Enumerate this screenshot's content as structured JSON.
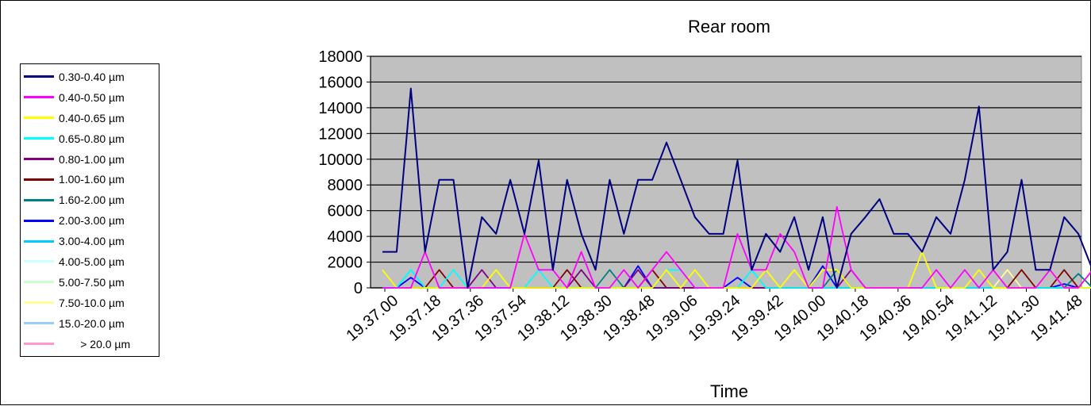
{
  "chart_data": {
    "type": "line",
    "title": "Rear room",
    "xlabel": "Time",
    "ylabel": "",
    "ylim": [
      0,
      18000
    ],
    "yticks": [
      0,
      2000,
      4000,
      6000,
      8000,
      10000,
      12000,
      14000,
      16000,
      18000
    ],
    "xtick_labels": [
      "19.37.00",
      "19.37.18",
      "19.37.36",
      "19.37.54",
      "19.38.12",
      "19.38.30",
      "19.38.48",
      "19.39.06",
      "19.39.24",
      "19.39.42",
      "19.40.00",
      "19.40.18",
      "19.40.36",
      "19.40.54",
      "19.41.12",
      "19.41.30",
      "19.41.48"
    ],
    "plot_background": "#c0c0c0",
    "grid": true,
    "legend_position": "left",
    "series": [
      {
        "name": "0.30-0.40 µm",
        "color": "#000080",
        "values": [
          2800,
          2800,
          15500,
          2800,
          8400,
          8400,
          0,
          5500,
          4200,
          8400,
          4200,
          9900,
          1400,
          8400,
          4200,
          1400,
          8400,
          4200,
          8400,
          8400,
          11300,
          8400,
          5500,
          4200,
          4200,
          9900,
          1400,
          4200,
          2800,
          5500,
          1400,
          5500,
          0,
          4200,
          5500,
          6900,
          4200,
          4200,
          2800,
          5500,
          4200,
          8400,
          14100,
          1400,
          2800,
          8400,
          1400,
          1400,
          5500,
          4200,
          1400
        ]
      },
      {
        "name": "0.40-0.50 µm",
        "color": "#ff00ff",
        "values": [
          0,
          0,
          0,
          2800,
          0,
          0,
          0,
          0,
          0,
          0,
          4200,
          1400,
          1400,
          0,
          2800,
          0,
          0,
          1400,
          0,
          1400,
          2800,
          1400,
          0,
          0,
          0,
          4200,
          1400,
          1400,
          4200,
          2800,
          0,
          0,
          6300,
          1400,
          0,
          0,
          0,
          0,
          0,
          1400,
          0,
          1400,
          0,
          1400,
          0,
          0,
          0,
          1400,
          0,
          0,
          1400
        ]
      },
      {
        "name": "0.40-0.65 µm",
        "color": "#ffff00",
        "values": [
          1400,
          0,
          0,
          0,
          0,
          0,
          0,
          0,
          1400,
          0,
          0,
          0,
          0,
          0,
          0,
          0,
          0,
          0,
          0,
          0,
          1400,
          0,
          1400,
          0,
          0,
          0,
          0,
          1400,
          0,
          1400,
          0,
          1400,
          1400,
          0,
          0,
          0,
          0,
          0,
          2800,
          0,
          0,
          0,
          1400,
          0,
          0,
          0,
          0,
          1400,
          0,
          0,
          0
        ]
      },
      {
        "name": "0.65-0.80 µm",
        "color": "#00ffff",
        "values": [
          0,
          0,
          1400,
          0,
          0,
          1400,
          0,
          0,
          0,
          0,
          0,
          1400,
          0,
          0,
          0,
          0,
          0,
          0,
          0,
          0,
          1400,
          1400,
          0,
          0,
          0,
          0,
          1400,
          0,
          0,
          0,
          0,
          0,
          0,
          0,
          0,
          0,
          0,
          0,
          0,
          0,
          0,
          0,
          0,
          0,
          0,
          0,
          0,
          0,
          0,
          0,
          0
        ]
      },
      {
        "name": "0.80-1.00 µm",
        "color": "#800080",
        "values": [
          0,
          0,
          0,
          0,
          0,
          0,
          0,
          1400,
          0,
          0,
          0,
          0,
          0,
          0,
          1400,
          0,
          0,
          0,
          1400,
          0,
          0,
          0,
          0,
          0,
          0,
          0,
          0,
          0,
          0,
          0,
          0,
          0,
          0,
          1400,
          0,
          0,
          0,
          0,
          0,
          0,
          0,
          0,
          0,
          0,
          0,
          0,
          0,
          0,
          0,
          0,
          0
        ]
      },
      {
        "name": "1.00-1.60 µm",
        "color": "#800000",
        "values": [
          0,
          0,
          0,
          0,
          1400,
          0,
          0,
          0,
          0,
          0,
          0,
          0,
          0,
          1400,
          0,
          0,
          0,
          0,
          0,
          1400,
          0,
          0,
          0,
          0,
          0,
          0,
          0,
          0,
          0,
          0,
          0,
          0,
          0,
          0,
          0,
          0,
          0,
          0,
          0,
          0,
          0,
          0,
          0,
          0,
          0,
          1400,
          0,
          0,
          1400,
          0,
          0
        ]
      },
      {
        "name": "1.60-2.00 µm",
        "color": "#008080",
        "values": [
          0,
          0,
          0,
          0,
          0,
          0,
          0,
          0,
          0,
          0,
          0,
          0,
          0,
          0,
          0,
          0,
          1400,
          0,
          0,
          0,
          0,
          0,
          0,
          0,
          0,
          0,
          0,
          0,
          0,
          0,
          0,
          0,
          1400,
          0,
          0,
          0,
          0,
          0,
          0,
          0,
          0,
          0,
          0,
          0,
          0,
          0,
          0,
          0,
          0,
          1100,
          0
        ]
      },
      {
        "name": "2.00-3.00 µm",
        "color": "#0000ff",
        "values": [
          0,
          0,
          800,
          0,
          0,
          0,
          0,
          0,
          0,
          0,
          0,
          0,
          0,
          0,
          0,
          0,
          0,
          0,
          1700,
          0,
          0,
          0,
          0,
          0,
          0,
          800,
          0,
          0,
          0,
          0,
          0,
          1700,
          0,
          0,
          0,
          0,
          0,
          0,
          0,
          0,
          0,
          0,
          0,
          0,
          0,
          0,
          0,
          0,
          300,
          0,
          0
        ]
      },
      {
        "name": "3.00-4.00 µm",
        "color": "#00ccff",
        "values": [
          0,
          0,
          1400,
          0,
          0,
          0,
          0,
          0,
          0,
          0,
          0,
          0,
          0,
          0,
          0,
          0,
          0,
          0,
          0,
          0,
          0,
          0,
          0,
          0,
          0,
          0,
          1400,
          0,
          0,
          0,
          0,
          0,
          0,
          0,
          0,
          0,
          0,
          0,
          0,
          0,
          0,
          0,
          0,
          0,
          0,
          0,
          0,
          0,
          0,
          0,
          0
        ]
      },
      {
        "name": "4.00-5.00 µm",
        "color": "#ccffff",
        "values": [
          0,
          0,
          0,
          0,
          0,
          0,
          0,
          0,
          0,
          0,
          0,
          0,
          0,
          0,
          0,
          0,
          0,
          0,
          0,
          0,
          0,
          0,
          0,
          0,
          0,
          0,
          0,
          0,
          0,
          0,
          0,
          0,
          0,
          0,
          0,
          0,
          0,
          0,
          0,
          0,
          0,
          0,
          0,
          0,
          0,
          0,
          0,
          0,
          0,
          0,
          0
        ]
      },
      {
        "name": "5.00-7.50 µm",
        "color": "#ccffcc",
        "values": [
          0,
          0,
          0,
          0,
          0,
          0,
          0,
          0,
          0,
          0,
          0,
          0,
          0,
          0,
          0,
          0,
          0,
          0,
          0,
          0,
          0,
          0,
          0,
          0,
          0,
          0,
          0,
          0,
          0,
          0,
          0,
          0,
          0,
          0,
          0,
          0,
          0,
          0,
          0,
          0,
          0,
          0,
          0,
          0,
          0,
          0,
          0,
          0,
          0,
          0,
          0
        ]
      },
      {
        "name": "7.50-10.0 µm",
        "color": "#ffff99",
        "values": [
          0,
          0,
          0,
          0,
          0,
          0,
          0,
          0,
          0,
          0,
          0,
          0,
          0,
          0,
          0,
          0,
          0,
          0,
          0,
          0,
          0,
          0,
          0,
          0,
          0,
          0,
          0,
          0,
          0,
          0,
          0,
          0,
          0,
          0,
          0,
          0,
          0,
          0,
          0,
          0,
          0,
          0,
          0,
          0,
          1400,
          0,
          0,
          0,
          0,
          0,
          0
        ]
      },
      {
        "name": "15.0-20.0 µm",
        "color": "#99ccff",
        "values": [
          0,
          0,
          0,
          0,
          0,
          0,
          0,
          0,
          0,
          0,
          0,
          0,
          0,
          0,
          0,
          0,
          0,
          0,
          0,
          0,
          0,
          0,
          0,
          0,
          0,
          0,
          0,
          0,
          0,
          0,
          0,
          0,
          0,
          0,
          0,
          0,
          0,
          0,
          0,
          0,
          0,
          0,
          0,
          0,
          0,
          0,
          0,
          0,
          0,
          0,
          0
        ]
      },
      {
        "name": "> 20.0 µm",
        "color": "#ff99cc",
        "values": [
          0,
          0,
          0,
          0,
          0,
          0,
          0,
          0,
          0,
          0,
          0,
          0,
          0,
          0,
          0,
          0,
          0,
          0,
          0,
          0,
          0,
          0,
          0,
          0,
          0,
          0,
          0,
          0,
          0,
          0,
          0,
          0,
          0,
          0,
          0,
          0,
          0,
          0,
          0,
          0,
          0,
          0,
          0,
          0,
          0,
          0,
          0,
          0,
          0,
          0,
          0
        ]
      }
    ]
  }
}
